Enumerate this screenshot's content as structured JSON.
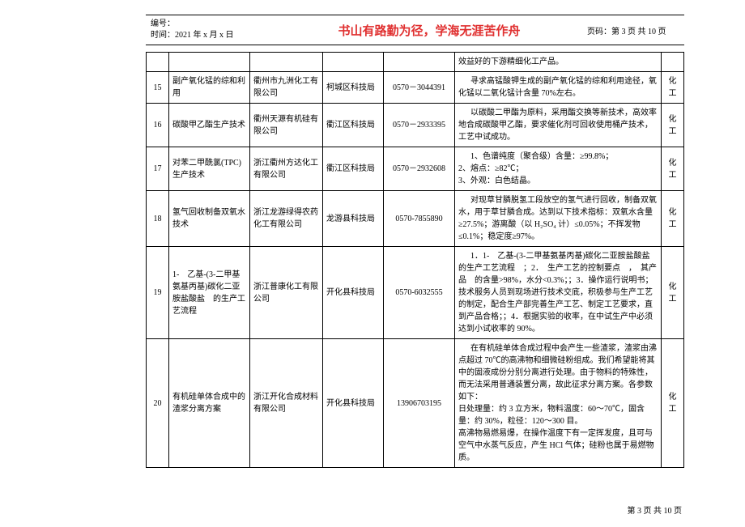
{
  "header": {
    "id_label": "编号：",
    "time_label": "时间：",
    "time_value": "2021 年 x 月 x 日",
    "motto": "书山有路勤为径，学海无涯苦作舟",
    "page_label": "页码：第 3 页  共 10 页"
  },
  "colors": {
    "motto": "#e03030",
    "border": "#000000",
    "text": "#000000",
    "background": "#ffffff"
  },
  "trailing_row_desc": "效益好的下游精细化工产品。",
  "rows": [
    {
      "num": "15",
      "name": "副产氧化锰的综和利用",
      "company": "衢州市九洲化工有限公司",
      "bureau": "柯城区科技局",
      "phone": "0570－3044391",
      "desc": "寻求高锰酸钾生成的副产氧化锰的综和利用途径，氧化锰以二氧化锰计含量 70%左右。",
      "category": "化工"
    },
    {
      "num": "16",
      "name": "碳酸甲乙酯生产技术",
      "company": "衢州天源有机硅有限公司",
      "bureau": "衢江区科技局",
      "phone": "0570－2933395",
      "desc": "以碳酸二甲酯为原料，采用酯交换等新技术，高效率地合成碳酸甲乙酯，要求催化剂可回收使用桶产技术，工艺中试成功。",
      "category": "化工"
    },
    {
      "num": "17",
      "name": "对苯二甲酰氯(TPC)生产技术",
      "company": "浙江衢州方达化工有限公司",
      "bureau": "衢江区科技局",
      "phone": "0570－2932608",
      "desc": "1、色谱纯度（聚合级）含量：≥99.8%；\n2、熔点：≥82℃；\n3、外观：白色结晶。",
      "category": "化工"
    },
    {
      "num": "18",
      "name": "氢气回收制备双氧水技术",
      "company": "浙江龙游绿得农药化工有限公司",
      "bureau": "龙游县科技局",
      "phone": "0570-7855890",
      "desc": "对现草甘膦脱氢工段放空的氢气进行回收，制备双氧水，用于草甘膦合成。达到以下技术指标：双氧水含量≥27.5%；游离酸（以 H₂SO₄ 计）≤0.05%；不挥发物≤0.1%；稳定度≥97%。",
      "category": "化工"
    },
    {
      "num": "19",
      "name": "1-　乙基-(3-二甲基氨基丙基)碳化二亚胺盐酸盐　的生产工艺流程",
      "company": "浙江普康化工有限公司",
      "bureau": "开化县科技局",
      "phone": "0570-6032555",
      "desc": "1．1-　乙基-(3-二甲基氨基丙基)碳化二亚胺盐酸盐　的生产工艺流程　；2．　生产工艺的控制要点　，　其产品　的含量>98%，水分<0.3%；；3．操作运行说明书；技术服务人员到现场进行技术交底，积极参与生产工艺的制定，配合生产部完善生产工艺、制定工艺要求，直到产品合格；；4．根据实验的收率，在中试生产中必须达到小试收率的 90%。",
      "category": "化工"
    },
    {
      "num": "20",
      "name": "有机硅单体合成中的渣浆分离方案",
      "company": "浙江开化合成材料有限公司",
      "bureau": "开化县科技局",
      "phone": "13906703195",
      "desc": "在有机硅单体合成过程中会产生一些渣浆，渣浆由沸点超过 70℃的高沸物和细微硅粉组成。我们希望能将其中的固液成份分别分离进行处理。由于物料的特殊性，而无法采用普通装置分离，故此征求分离方案。各参数如下：\n日处理量：约 3 立方米，物料温度：60～70℃，固含量：约 30%，粒径：120～300 目。\n高沸物易燃易爆，在操作温度下有一定挥发度，且可与空气中水蒸气反应，产生 HCl 气体；硅粉也属于易燃物质。",
      "category": "化工"
    }
  ],
  "footer": "第 3 页 共 10 页"
}
